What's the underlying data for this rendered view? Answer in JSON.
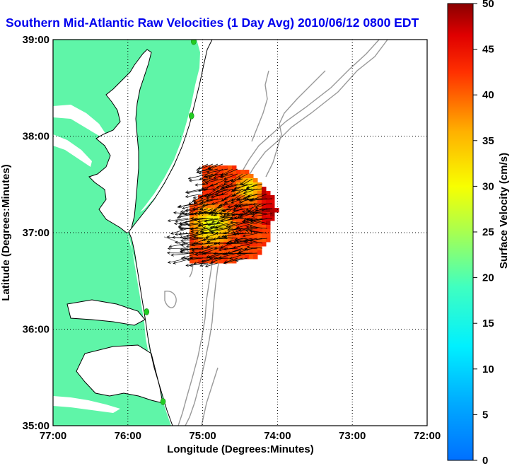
{
  "title": "Southern Mid-Atlantic Raw Velocities (1 Day Avg) 2010/06/12 0800 EDT",
  "map": {
    "xlabel": "Longitude (Degrees:Minutes)",
    "ylabel": "Latitude (Degrees:Minutes)",
    "lon_ticks": [
      "77:00",
      "76:00",
      "75:00",
      "74:00",
      "73:00",
      "72:00"
    ],
    "lat_ticks": [
      "39:00",
      "38:00",
      "37:00",
      "36:00",
      "35:00"
    ],
    "colors": {
      "land": "#5ff5a8",
      "water": "#ffffff",
      "bathymetry": "#999999",
      "station": "#22cc22",
      "arrows": "#000000"
    }
  },
  "colorbar": {
    "label": "Surface Velocity (cm/s)",
    "ticks": [
      "0",
      "5",
      "10",
      "15",
      "20",
      "25",
      "30",
      "35",
      "40",
      "45",
      "50"
    ],
    "colormap": "jet",
    "range": [
      0,
      50
    ]
  },
  "chart_data": {
    "type": "map",
    "xlim": [
      -77,
      -72
    ],
    "ylim": [
      35,
      39
    ],
    "grid": true,
    "stations": [
      {
        "lon": -75.12,
        "lat": 38.98
      },
      {
        "lon": -75.15,
        "lat": 38.21
      },
      {
        "lon": -75.75,
        "lat": 36.18
      },
      {
        "lon": -75.53,
        "lat": 35.25
      }
    ]
  }
}
